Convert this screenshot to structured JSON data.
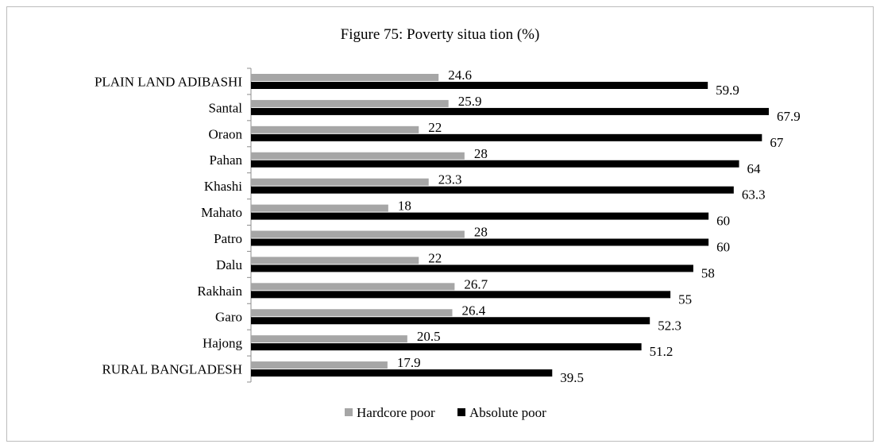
{
  "chart_data": {
    "type": "bar",
    "orientation": "horizontal",
    "title": "Figure 75: Poverty situa tion (%)",
    "categories": [
      "PLAIN LAND ADIBASHI",
      "Santal",
      "Oraon",
      "Pahan",
      "Khashi",
      "Mahato",
      "Patro",
      "Dalu",
      "Rakhain",
      "Garo",
      "Hajong",
      "RURAL BANGLADESH"
    ],
    "series": [
      {
        "name": "Hardcore poor",
        "values": [
          24.6,
          25.9,
          22,
          28,
          23.3,
          18,
          28,
          22,
          26.7,
          26.4,
          20.5,
          17.9
        ],
        "color": "#a6a6a6"
      },
      {
        "name": "Absolute poor",
        "values": [
          59.9,
          67.9,
          67,
          64,
          63.3,
          60,
          60,
          58,
          55,
          52.3,
          51.2,
          39.5
        ],
        "color": "#000000"
      }
    ],
    "legend": "bottom",
    "grid": false,
    "xlim": [
      0,
      70
    ]
  }
}
